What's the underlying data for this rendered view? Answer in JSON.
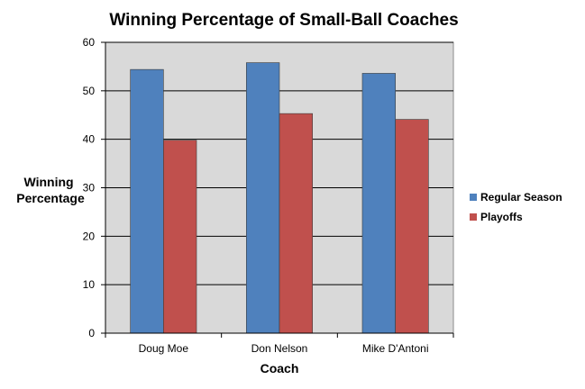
{
  "chart_data": {
    "type": "bar",
    "title": "Winning Percentage of Small-Ball Coaches",
    "xlabel": "Coach",
    "ylabel": [
      "Winning",
      "Percentage"
    ],
    "categories": [
      "Doug Moe",
      "Don Nelson",
      "Mike D'Antoni"
    ],
    "series": [
      {
        "name": "Regular Season",
        "color": "#4F81BD",
        "values": [
          54.4,
          55.8,
          53.6
        ]
      },
      {
        "name": "Playoffs",
        "color": "#C0504D",
        "values": [
          39.8,
          45.3,
          44.1
        ]
      }
    ],
    "ylim": [
      0,
      60
    ],
    "yticks": [
      0,
      10,
      20,
      30,
      40,
      50,
      60
    ],
    "grid": true,
    "legend_position": "right",
    "plot_background": "#D9D9D9"
  }
}
